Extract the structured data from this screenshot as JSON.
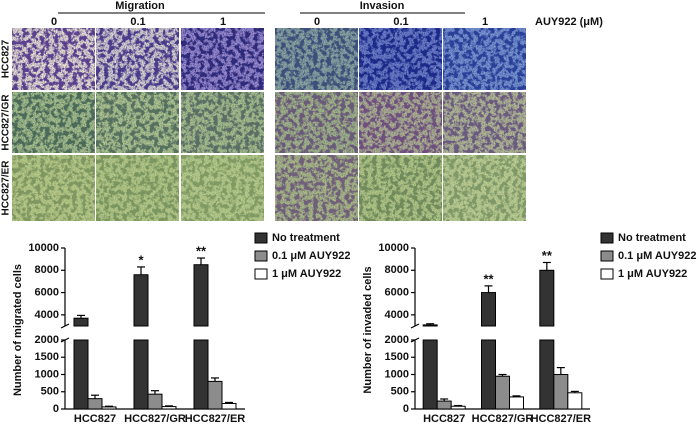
{
  "figure": {
    "headers": [
      {
        "text": "Migration",
        "columns": [
          "0",
          "0.1",
          "1"
        ]
      },
      {
        "text": "Invasion",
        "columns": [
          "0",
          "0.1",
          "1"
        ]
      }
    ],
    "unit_label": "AUY922 (μM)",
    "rows": [
      "HCC827",
      "HCC827/GR",
      "HCC827/ER"
    ]
  },
  "chart_data": [
    {
      "type": "bar",
      "ylabel": "Number of migrated cells",
      "categories": [
        "HCC827",
        "HCC827/GR",
        "HCC827/ER"
      ],
      "series": [
        {
          "name": "No treatment",
          "color": "#333333",
          "values": [
            3700,
            7600,
            8500
          ],
          "errors": [
            250,
            700,
            600
          ],
          "annotations": [
            null,
            "*",
            "**"
          ]
        },
        {
          "name": "0.1 μM AUY922",
          "color": "#8c8c8c",
          "values": [
            300,
            430,
            800
          ],
          "errors": [
            100,
            100,
            100
          ]
        },
        {
          "name": "1 μM AUY922",
          "color": "#ffffff",
          "values": [
            60,
            70,
            160
          ],
          "errors": [
            20,
            20,
            30
          ]
        }
      ],
      "axis_break": {
        "lower": {
          "ylim": [
            0,
            2000
          ],
          "yticks": [
            0,
            500,
            1000,
            1500,
            2000
          ]
        },
        "upper": {
          "ylim": [
            3000,
            10000
          ],
          "yticks": [
            4000,
            6000,
            8000,
            10000
          ]
        }
      },
      "legend": "right"
    },
    {
      "type": "bar",
      "ylabel": "Number of invaded cells",
      "categories": [
        "HCC827",
        "HCC827/GR",
        "HCC827/ER"
      ],
      "series": [
        {
          "name": "No treatment",
          "color": "#333333",
          "values": [
            3100,
            6000,
            8000
          ],
          "errors": [
            100,
            600,
            700
          ],
          "annotations": [
            null,
            "**",
            "**"
          ]
        },
        {
          "name": "0.1 μM AUY922",
          "color": "#8c8c8c",
          "values": [
            230,
            950,
            1000
          ],
          "errors": [
            60,
            50,
            200
          ]
        },
        {
          "name": "1 μM AUY922",
          "color": "#ffffff",
          "values": [
            80,
            350,
            470
          ],
          "errors": [
            20,
            30,
            40
          ]
        }
      ],
      "axis_break": {
        "lower": {
          "ylim": [
            0,
            2000
          ],
          "yticks": [
            0,
            500,
            1000,
            1500,
            2000
          ]
        },
        "upper": {
          "ylim": [
            3000,
            10000
          ],
          "yticks": [
            4000,
            6000,
            8000,
            10000
          ]
        }
      },
      "legend": "right"
    }
  ]
}
